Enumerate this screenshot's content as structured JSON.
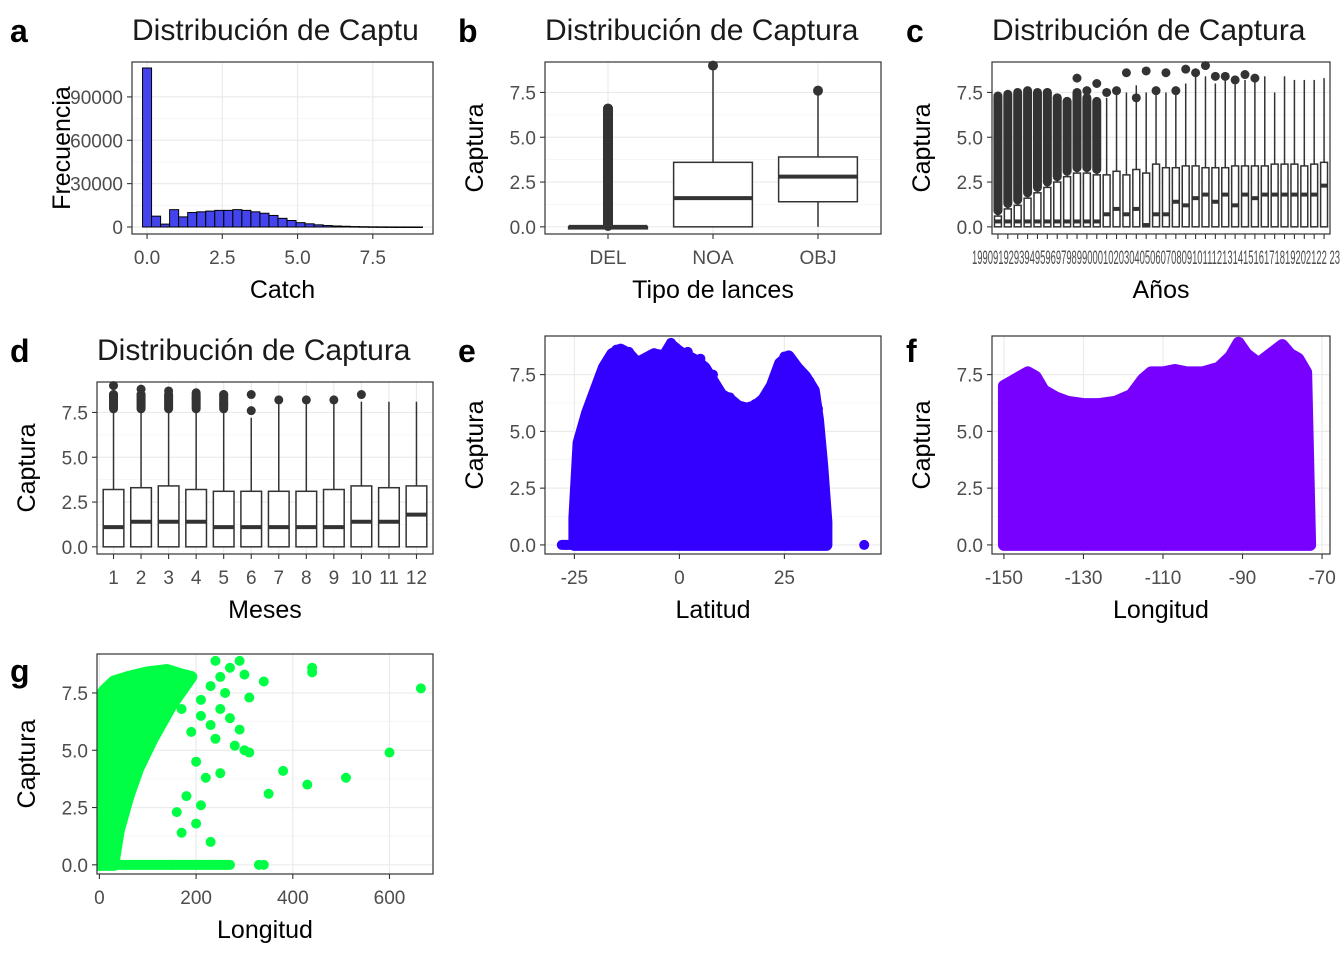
{
  "colors": {
    "hist_fill": "#4444ee",
    "box_stroke": "#333333",
    "scatter_lat": "#3300ff",
    "scatter_lon": "#7700ff",
    "scatter_g": "#00ff44"
  },
  "chart_data": [
    {
      "panel": "a",
      "type": "bar",
      "title": "Distribución de Captu",
      "xlabel": "Catch",
      "ylabel": "Frecuencia",
      "xlim": [
        -0.5,
        9.5
      ],
      "ylim": [
        0,
        110000
      ],
      "xticks": [
        "0.0",
        "2.5",
        "5.0",
        "7.5"
      ],
      "xtick_values": [
        0,
        2.5,
        5,
        7.5
      ],
      "yticks": [
        "0",
        "30000",
        "60000",
        "90000"
      ],
      "ytick_values": [
        0,
        30000,
        60000,
        90000
      ],
      "x": [
        0.0,
        0.3,
        0.6,
        0.9,
        1.2,
        1.5,
        1.8,
        2.1,
        2.4,
        2.7,
        3.0,
        3.3,
        3.6,
        3.9,
        4.2,
        4.5,
        4.8,
        5.1,
        5.4,
        5.7,
        6.0,
        6.3,
        6.6,
        6.9,
        7.2,
        7.5,
        7.8,
        8.1,
        8.4,
        8.7,
        9.0
      ],
      "values": [
        110000,
        7500,
        2000,
        12000,
        7000,
        10000,
        10500,
        11000,
        11500,
        11500,
        12000,
        11500,
        10500,
        9500,
        8000,
        6000,
        4500,
        3000,
        2200,
        1500,
        1000,
        700,
        500,
        300,
        200,
        120,
        80,
        50,
        30,
        20,
        10
      ]
    },
    {
      "panel": "b",
      "type": "box",
      "title": "Distribución de Captura",
      "xlabel": "Tipo de lances",
      "ylabel": "Captura",
      "ylim": [
        -0.4,
        9.2
      ],
      "yticks": [
        "0.0",
        "2.5",
        "5.0",
        "7.5"
      ],
      "ytick_values": [
        0,
        2.5,
        5,
        7.5
      ],
      "categories": [
        "DEL",
        "NOA",
        "OBJ"
      ],
      "boxes": [
        {
          "q1": 0,
          "median": 0,
          "q3": 0,
          "lo": 0,
          "hi": 0,
          "outliers": [
            6.6
          ],
          "dense_outliers": [
            0.05,
            6.6
          ]
        },
        {
          "q1": 0,
          "median": 1.6,
          "q3": 3.6,
          "lo": 0,
          "hi": 8.8,
          "outliers": [
            9.0
          ]
        },
        {
          "q1": 1.4,
          "median": 2.8,
          "q3": 3.9,
          "lo": 0,
          "hi": 7.4,
          "outliers": [
            7.6
          ]
        }
      ]
    },
    {
      "panel": "c",
      "type": "box",
      "title": "Distribución de Captura",
      "xlabel": "Años",
      "ylabel": "Captura",
      "ylim": [
        -0.4,
        9.2
      ],
      "yticks": [
        "0.0",
        "2.5",
        "5.0",
        "7.5"
      ],
      "ytick_values": [
        0,
        2.5,
        5,
        7.5
      ],
      "categories": [
        "1990",
        "1991",
        "1992",
        "1993",
        "1994",
        "1995",
        "1996",
        "1997",
        "1998",
        "1999",
        "2000",
        "2001",
        "2002",
        "2003",
        "2004",
        "2005",
        "2006",
        "2007",
        "2008",
        "2009",
        "2010",
        "2011",
        "2012",
        "2013",
        "2014",
        "2015",
        "2016",
        "2017",
        "2018",
        "2019",
        "2020",
        "2021",
        "2022",
        "2023"
      ],
      "xtick_text": "19909192939495969798990001020304050607080910111213141516171819202122 23",
      "medians": [
        0.3,
        0.3,
        0.3,
        0.3,
        0.3,
        0.3,
        0.3,
        0.3,
        0.3,
        0.3,
        0.3,
        0.7,
        1.0,
        0.7,
        1.0,
        0.1,
        0.7,
        0.7,
        1.4,
        1.2,
        1.6,
        1.8,
        1.4,
        1.8,
        1.2,
        1.8,
        1.6,
        1.8,
        1.8,
        1.8,
        1.8,
        1.8,
        1.8,
        2.3
      ],
      "q3": [
        0.6,
        1.0,
        1.2,
        1.6,
        1.9,
        2.2,
        2.5,
        2.8,
        3.0,
        3.0,
        2.9,
        2.9,
        3.1,
        2.9,
        3.2,
        3.0,
        3.5,
        3.3,
        3.3,
        3.4,
        3.4,
        3.3,
        3.3,
        3.3,
        3.4,
        3.4,
        3.4,
        3.4,
        3.5,
        3.5,
        3.5,
        3.4,
        3.5,
        3.6
      ],
      "hi": [
        7.2,
        7.3,
        7.4,
        7.5,
        7.5,
        7.5,
        7.2,
        7.0,
        7.5,
        7.2,
        7.0,
        7.2,
        7.5,
        7.5,
        7.9,
        7.5,
        7.7,
        7.5,
        7.6,
        8.0,
        8.4,
        8.4,
        8.0,
        8.5,
        8.0,
        8.2,
        8.2,
        8.4,
        7.5,
        8.4,
        8.2,
        8.2,
        8.2,
        8.3
      ],
      "top_outliers": [
        7.3,
        7.4,
        7.5,
        7.6,
        7.4,
        7.5,
        7.2,
        7.0,
        8.3,
        7.6,
        8.0,
        7.5,
        7.6,
        8.6,
        7.2,
        8.7,
        7.6,
        8.6,
        7.6,
        8.8,
        8.6,
        9.0,
        8.4,
        8.4,
        8.2,
        8.5,
        8.3,
        null,
        null,
        null,
        null,
        null,
        null,
        null
      ]
    },
    {
      "panel": "d",
      "type": "box",
      "title": "Distribución de Captura",
      "xlabel": "Meses",
      "ylabel": "Captura",
      "ylim": [
        -0.4,
        9.2
      ],
      "yticks": [
        "0.0",
        "2.5",
        "5.0",
        "7.5"
      ],
      "ytick_values": [
        0,
        2.5,
        5,
        7.5
      ],
      "categories": [
        "1",
        "2",
        "3",
        "4",
        "5",
        "6",
        "7",
        "8",
        "9",
        "10",
        "11",
        "12"
      ],
      "boxes": [
        {
          "q1": 0,
          "median": 1.1,
          "q3": 3.2,
          "lo": 0,
          "hi": 7.8,
          "outliers": [
            8.0,
            8.3,
            8.5,
            9.0
          ]
        },
        {
          "q1": 0,
          "median": 1.4,
          "q3": 3.3,
          "lo": 0,
          "hi": 8.2,
          "outliers": [
            8.5,
            8.8
          ]
        },
        {
          "q1": 0,
          "median": 1.4,
          "q3": 3.4,
          "lo": 0,
          "hi": 8.2,
          "outliers": [
            8.7
          ]
        },
        {
          "q1": 0,
          "median": 1.4,
          "q3": 3.2,
          "lo": 0,
          "hi": 8.0,
          "outliers": [
            8.3,
            8.6
          ]
        },
        {
          "q1": 0,
          "median": 1.1,
          "q3": 3.1,
          "lo": 0,
          "hi": 7.6,
          "outliers": [
            8.0,
            8.5
          ]
        },
        {
          "q1": 0,
          "median": 1.1,
          "q3": 3.1,
          "lo": 0,
          "hi": 7.2,
          "outliers": [
            7.6,
            8.5
          ]
        },
        {
          "q1": 0,
          "median": 1.1,
          "q3": 3.1,
          "lo": 0,
          "hi": 8.0,
          "outliers": [
            8.2
          ]
        },
        {
          "q1": 0,
          "median": 1.1,
          "q3": 3.1,
          "lo": 0,
          "hi": 8.1,
          "outliers": [
            8.2
          ]
        },
        {
          "q1": 0,
          "median": 1.1,
          "q3": 3.2,
          "lo": 0,
          "hi": 8.1,
          "outliers": [
            8.2
          ]
        },
        {
          "q1": 0,
          "median": 1.4,
          "q3": 3.4,
          "lo": 0,
          "hi": 8.1,
          "outliers": [
            8.5
          ]
        },
        {
          "q1": 0,
          "median": 1.4,
          "q3": 3.3,
          "lo": 0,
          "hi": 8.1,
          "outliers": []
        },
        {
          "q1": 0,
          "median": 1.8,
          "q3": 3.4,
          "lo": 0,
          "hi": 8.1,
          "outliers": []
        }
      ]
    },
    {
      "panel": "e",
      "type": "scatter",
      "title": "",
      "xlabel": "Latitud",
      "ylabel": "Captura",
      "xlim": [
        -32,
        48
      ],
      "ylim": [
        -0.4,
        9.2
      ],
      "xticks": [
        "-25",
        "0",
        "25"
      ],
      "xtick_values": [
        -25,
        0,
        25
      ],
      "yticks": [
        "0.0",
        "2.5",
        "5.0",
        "7.5"
      ],
      "ytick_values": [
        0,
        2.5,
        5,
        7.5
      ],
      "points": [
        [
          -27,
          0
        ],
        [
          44,
          0
        ],
        [
          -24,
          1.2
        ],
        [
          -22,
          4.5
        ],
        [
          -20,
          6.5
        ],
        [
          -18,
          7.8
        ],
        [
          -15,
          8.6
        ],
        [
          -12,
          8.5
        ],
        [
          -8,
          8.2
        ],
        [
          -5,
          8.4
        ],
        [
          -2,
          8.9
        ],
        [
          2,
          8.5
        ],
        [
          5,
          8.2
        ],
        [
          8,
          7.5
        ],
        [
          12,
          6.5
        ],
        [
          15,
          6.0
        ],
        [
          18,
          6.2
        ],
        [
          22,
          7.0
        ],
        [
          25,
          8.3
        ],
        [
          28,
          7.6
        ],
        [
          31,
          7.2
        ],
        [
          33,
          6.0
        ],
        [
          34,
          2.0
        ],
        [
          35,
          0
        ]
      ],
      "envelope": [
        [
          -25,
          0
        ],
        [
          -25,
          1.2
        ],
        [
          -24,
          4.5
        ],
        [
          -22,
          5.8
        ],
        [
          -20,
          6.8
        ],
        [
          -18,
          7.8
        ],
        [
          -16,
          8.4
        ],
        [
          -14,
          8.6
        ],
        [
          -12,
          8.4
        ],
        [
          -10,
          8.0
        ],
        [
          -8,
          8.2
        ],
        [
          -6,
          8.4
        ],
        [
          -4,
          8.2
        ],
        [
          -2,
          8.8
        ],
        [
          0,
          8.5
        ],
        [
          2,
          8.3
        ],
        [
          4,
          8.1
        ],
        [
          6,
          7.8
        ],
        [
          8,
          7.2
        ],
        [
          10,
          6.6
        ],
        [
          12,
          6.4
        ],
        [
          14,
          6.1
        ],
        [
          16,
          6.0
        ],
        [
          18,
          6.1
        ],
        [
          20,
          6.4
        ],
        [
          22,
          7.0
        ],
        [
          24,
          8.0
        ],
        [
          26,
          8.3
        ],
        [
          28,
          7.8
        ],
        [
          30,
          7.4
        ],
        [
          32,
          6.8
        ],
        [
          33,
          5.5
        ],
        [
          34,
          3.5
        ],
        [
          35,
          1.0
        ],
        [
          35,
          0
        ]
      ]
    },
    {
      "panel": "f",
      "type": "scatter",
      "title": "",
      "xlabel": "Longitud",
      "ylabel": "Captura",
      "xlim": [
        -153,
        -68
      ],
      "ylim": [
        -0.4,
        9.2
      ],
      "xticks": [
        "-150",
        "-130",
        "-110",
        "-90",
        "-70"
      ],
      "xtick_values": [
        -150,
        -130,
        -110,
        -90,
        -70
      ],
      "yticks": [
        "0.0",
        "2.5",
        "5.0",
        "7.5"
      ],
      "ytick_values": [
        0,
        2.5,
        5,
        7.5
      ],
      "envelope": [
        [
          -150,
          0
        ],
        [
          -150,
          7.0
        ],
        [
          -148,
          7.2
        ],
        [
          -146,
          7.4
        ],
        [
          -144,
          7.6
        ],
        [
          -142,
          7.4
        ],
        [
          -140,
          6.8
        ],
        [
          -137,
          6.5
        ],
        [
          -134,
          6.3
        ],
        [
          -130,
          6.2
        ],
        [
          -126,
          6.2
        ],
        [
          -122,
          6.3
        ],
        [
          -118,
          6.6
        ],
        [
          -115,
          7.3
        ],
        [
          -113,
          7.6
        ],
        [
          -110,
          7.6
        ],
        [
          -107,
          7.7
        ],
        [
          -104,
          7.6
        ],
        [
          -100,
          7.6
        ],
        [
          -96,
          7.8
        ],
        [
          -93,
          8.3
        ],
        [
          -91,
          8.9
        ],
        [
          -89,
          8.4
        ],
        [
          -86,
          8.0
        ],
        [
          -83,
          8.4
        ],
        [
          -80,
          8.8
        ],
        [
          -78,
          8.4
        ],
        [
          -76,
          8.2
        ],
        [
          -74,
          7.6
        ],
        [
          -73,
          0
        ]
      ]
    },
    {
      "panel": "g",
      "type": "scatter",
      "title": "",
      "xlabel": "Longitud",
      "ylabel": "Captura",
      "xlim": [
        -5,
        690
      ],
      "ylim": [
        -0.4,
        9.2
      ],
      "xticks": [
        "0",
        "200",
        "400",
        "600"
      ],
      "xtick_values": [
        0,
        200,
        400,
        600
      ],
      "yticks": [
        "0.0",
        "2.5",
        "5.0",
        "7.5"
      ],
      "ytick_values": [
        0,
        2.5,
        5,
        7.5
      ],
      "envelope": [
        [
          0,
          0
        ],
        [
          0,
          7.3
        ],
        [
          10,
          7.6
        ],
        [
          30,
          8.0
        ],
        [
          60,
          8.2
        ],
        [
          100,
          8.4
        ],
        [
          140,
          8.5
        ],
        [
          170,
          8.3
        ],
        [
          190,
          8.2
        ],
        [
          150,
          7.0
        ],
        [
          110,
          5.5
        ],
        [
          80,
          4.2
        ],
        [
          60,
          3.0
        ],
        [
          40,
          1.5
        ],
        [
          30,
          0.2
        ],
        [
          30,
          0
        ]
      ],
      "points": [
        [
          150,
          0
        ],
        [
          200,
          0
        ],
        [
          240,
          0
        ],
        [
          260,
          0
        ],
        [
          330,
          0
        ],
        [
          340,
          0
        ],
        [
          240,
          8.9
        ],
        [
          290,
          8.9
        ],
        [
          270,
          8.6
        ],
        [
          250,
          8.2
        ],
        [
          300,
          8.3
        ],
        [
          340,
          8.0
        ],
        [
          440,
          8.6
        ],
        [
          440,
          8.4
        ],
        [
          665,
          7.7
        ],
        [
          230,
          7.8
        ],
        [
          260,
          7.5
        ],
        [
          310,
          7.3
        ],
        [
          250,
          6.8
        ],
        [
          210,
          6.5
        ],
        [
          230,
          6.1
        ],
        [
          270,
          6.4
        ],
        [
          290,
          5.9
        ],
        [
          240,
          5.5
        ],
        [
          280,
          5.2
        ],
        [
          300,
          5.0
        ],
        [
          310,
          4.9
        ],
        [
          600,
          4.9
        ],
        [
          380,
          4.1
        ],
        [
          510,
          3.8
        ],
        [
          430,
          3.5
        ],
        [
          350,
          3.1
        ],
        [
          200,
          4.5
        ],
        [
          220,
          3.8
        ],
        [
          180,
          3.0
        ],
        [
          210,
          2.6
        ],
        [
          160,
          2.3
        ],
        [
          200,
          1.8
        ],
        [
          170,
          1.4
        ],
        [
          230,
          1.0
        ],
        [
          250,
          4.0
        ],
        [
          190,
          5.8
        ],
        [
          170,
          6.8
        ],
        [
          210,
          7.2
        ]
      ]
    }
  ]
}
